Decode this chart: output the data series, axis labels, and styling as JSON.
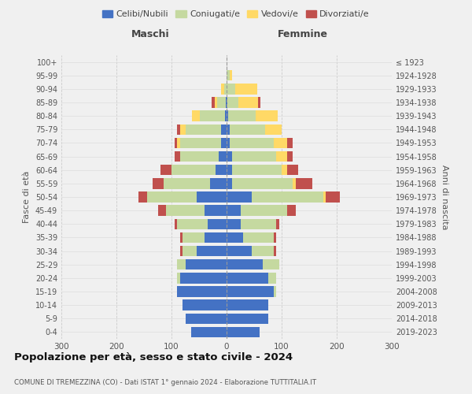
{
  "age_groups": [
    "0-4",
    "5-9",
    "10-14",
    "15-19",
    "20-24",
    "25-29",
    "30-34",
    "35-39",
    "40-44",
    "45-49",
    "50-54",
    "55-59",
    "60-64",
    "65-69",
    "70-74",
    "75-79",
    "80-84",
    "85-89",
    "90-94",
    "95-99",
    "100+"
  ],
  "birth_years": [
    "2019-2023",
    "2014-2018",
    "2009-2013",
    "2004-2008",
    "1999-2003",
    "1994-1998",
    "1989-1993",
    "1984-1988",
    "1979-1983",
    "1974-1978",
    "1969-1973",
    "1964-1968",
    "1959-1963",
    "1954-1958",
    "1949-1953",
    "1944-1948",
    "1939-1943",
    "1934-1938",
    "1929-1933",
    "1924-1928",
    "≤ 1923"
  ],
  "male": {
    "celibi": [
      65,
      75,
      80,
      90,
      85,
      75,
      55,
      40,
      35,
      40,
      55,
      30,
      20,
      15,
      10,
      10,
      3,
      2,
      0,
      0,
      0
    ],
    "coniugati": [
      0,
      0,
      0,
      0,
      5,
      15,
      25,
      40,
      55,
      70,
      90,
      85,
      80,
      70,
      75,
      65,
      45,
      15,
      5,
      0,
      0
    ],
    "vedovi": [
      0,
      0,
      0,
      0,
      0,
      0,
      0,
      0,
      0,
      0,
      0,
      0,
      0,
      0,
      5,
      10,
      15,
      5,
      5,
      0,
      0
    ],
    "divorziati": [
      0,
      0,
      0,
      0,
      0,
      0,
      5,
      5,
      5,
      15,
      15,
      20,
      20,
      10,
      5,
      5,
      0,
      5,
      0,
      0,
      0
    ]
  },
  "female": {
    "nubili": [
      60,
      75,
      75,
      85,
      75,
      65,
      45,
      30,
      25,
      25,
      45,
      10,
      10,
      10,
      5,
      5,
      3,
      2,
      0,
      0,
      0
    ],
    "coniugate": [
      0,
      0,
      0,
      5,
      15,
      30,
      40,
      55,
      65,
      85,
      130,
      110,
      90,
      80,
      80,
      65,
      50,
      20,
      15,
      5,
      0
    ],
    "vedove": [
      0,
      0,
      0,
      0,
      0,
      0,
      0,
      0,
      0,
      0,
      5,
      5,
      10,
      20,
      25,
      30,
      40,
      35,
      40,
      5,
      0
    ],
    "divorziate": [
      0,
      0,
      0,
      0,
      0,
      0,
      5,
      5,
      5,
      15,
      25,
      30,
      20,
      10,
      10,
      0,
      0,
      5,
      0,
      0,
      0
    ]
  },
  "colors": {
    "celibi": "#4472C4",
    "coniugati": "#C5D9A0",
    "vedovi": "#FFD966",
    "divorziati": "#C0504D"
  },
  "xlim": 300,
  "title": "Popolazione per età, sesso e stato civile - 2024",
  "subtitle": "COMUNE DI TREMEZZINA (CO) - Dati ISTAT 1° gennaio 2024 - Elaborazione TUTTITALIA.IT",
  "ylabel_left": "Fasce di età",
  "ylabel_right": "Anni di nascita",
  "legend_labels": [
    "Celibi/Nubili",
    "Coniugati/e",
    "Vedovi/e",
    "Divorziati/e"
  ],
  "bg_color": "#f0f0f0"
}
